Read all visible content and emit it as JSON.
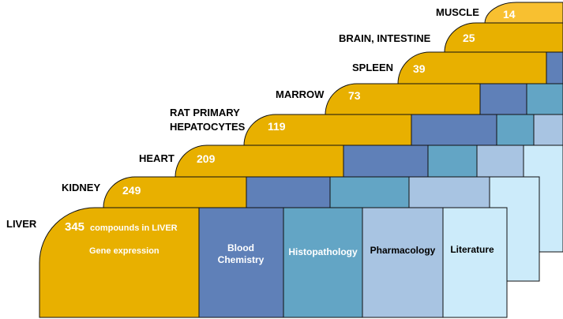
{
  "tissues": [
    {
      "label": "MUSCLE",
      "count": "14"
    },
    {
      "label": "BRAIN,  INTESTINE",
      "count": "25"
    },
    {
      "label": "SPLEEN",
      "count": "39"
    },
    {
      "label": "MARROW",
      "count": "73"
    },
    {
      "label_line1": "RAT PRIMARY",
      "label_line2": "HEPATOCYTES",
      "count": "119"
    },
    {
      "label": "HEART",
      "count": "209"
    },
    {
      "label": "KIDNEY",
      "count": "249"
    },
    {
      "label": "LIVER",
      "count": "345",
      "count_suffix": "compounds in LIVER",
      "sub_label": "Gene expression"
    }
  ],
  "data_types": {
    "blood_line1": "Blood",
    "blood_line2": "Chemistry",
    "histopathology": "Histopathology",
    "pharmacology": "Pharmacology",
    "literature": "Literature"
  },
  "colors": {
    "gold": "#E8B000",
    "muscle_gold": "#F8C030",
    "blood": "#5F80B8",
    "histo": "#63A5C5",
    "pharma": "#A8C4E2",
    "lit": "#CCEBFA"
  }
}
